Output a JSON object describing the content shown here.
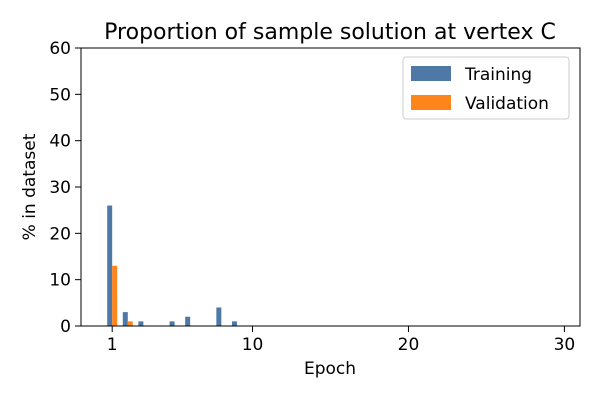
{
  "chart_data": {
    "type": "bar",
    "title": "Proportion of sample solution at vertex C",
    "xlabel": "Epoch",
    "ylabel": "% in dataset",
    "xlim": [
      -1,
      31
    ],
    "ylim": [
      0,
      60
    ],
    "xticks": [
      1,
      10,
      20,
      30
    ],
    "yticks": [
      0,
      10,
      20,
      30,
      40,
      50,
      60
    ],
    "legend_position": "top-right",
    "grid": false,
    "series": [
      {
        "name": "Training",
        "color": "#4e79a7",
        "points": [
          {
            "x": 1,
            "y": 26
          },
          {
            "x": 2,
            "y": 3
          },
          {
            "x": 3,
            "y": 1
          },
          {
            "x": 5,
            "y": 1
          },
          {
            "x": 6,
            "y": 2
          },
          {
            "x": 8,
            "y": 4
          },
          {
            "x": 9,
            "y": 1
          }
        ]
      },
      {
        "name": "Validation",
        "color": "#ff851b",
        "points": [
          {
            "x": 1,
            "y": 13
          },
          {
            "x": 2,
            "y": 1
          }
        ]
      }
    ]
  }
}
